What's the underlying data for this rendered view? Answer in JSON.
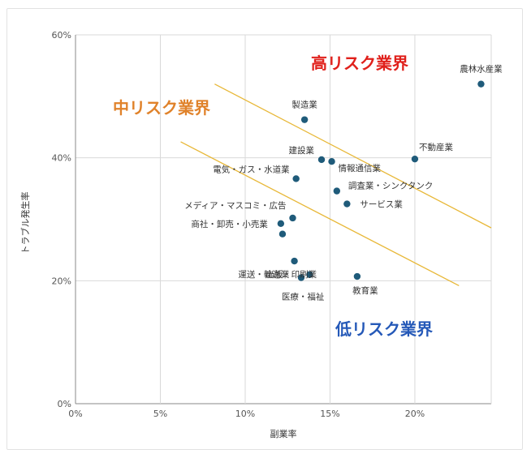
{
  "chart_data": {
    "type": "scatter",
    "xlabel": "副業率",
    "ylabel": "トラブル発生率",
    "xlim": [
      0,
      24.5
    ],
    "ylim": [
      0,
      60
    ],
    "x_ticks": [
      {
        "value": 0,
        "label": "0%"
      },
      {
        "value": 5,
        "label": "5%"
      },
      {
        "value": 10,
        "label": "10%"
      },
      {
        "value": 15,
        "label": "15%"
      },
      {
        "value": 20,
        "label": "20%"
      }
    ],
    "y_ticks": [
      {
        "value": 0,
        "label": "0%"
      },
      {
        "value": 20,
        "label": "20%"
      },
      {
        "value": 40,
        "label": "40%"
      },
      {
        "value": 60,
        "label": "60%"
      }
    ],
    "grid": true,
    "points": [
      {
        "label": "農林水産業",
        "x": 23.9,
        "y": 52.0
      },
      {
        "label": "製造業",
        "x": 13.5,
        "y": 46.2
      },
      {
        "label": "不動産業",
        "x": 20.0,
        "y": 39.8
      },
      {
        "label": "建設業",
        "x": 14.5,
        "y": 39.7
      },
      {
        "label": "情報通信業",
        "x": 15.1,
        "y": 39.4
      },
      {
        "label": "電気・ガス・水道業",
        "x": 13.0,
        "y": 36.6
      },
      {
        "label": "調査業・シンクタンク",
        "x": 15.4,
        "y": 34.6
      },
      {
        "label": "サービス業",
        "x": 16.0,
        "y": 32.5
      },
      {
        "label": "メディア・マスコミ・広告",
        "x": 12.8,
        "y": 30.2
      },
      {
        "label": "商社・卸売・小売業",
        "x": 12.1,
        "y": 29.3
      },
      {
        "label": "",
        "x": 12.2,
        "y": 27.6
      },
      {
        "label": "出版・印刷業",
        "x": 12.9,
        "y": 23.2
      },
      {
        "label": "運送・輸送業",
        "x": 13.8,
        "y": 21.0
      },
      {
        "label": "教育業",
        "x": 16.6,
        "y": 20.7
      },
      {
        "label": "医療・福祉",
        "x": 13.3,
        "y": 20.5
      }
    ],
    "trend_lines": [
      {
        "from": [
          8.2,
          52.0
        ],
        "to": [
          24.5,
          28.6
        ]
      },
      {
        "from": [
          6.2,
          42.6
        ],
        "to": [
          22.6,
          19.2
        ]
      }
    ],
    "annotations": [
      {
        "text": "高リスク業界",
        "color": "#e0201b"
      },
      {
        "text": "中リスク業界",
        "color": "#e0822a"
      },
      {
        "text": "低リスク業界",
        "color": "#2559b8"
      }
    ],
    "colors": {
      "point": "#1f5b7a",
      "trend": "#e8b838",
      "grid": "#d9d9d9"
    }
  }
}
